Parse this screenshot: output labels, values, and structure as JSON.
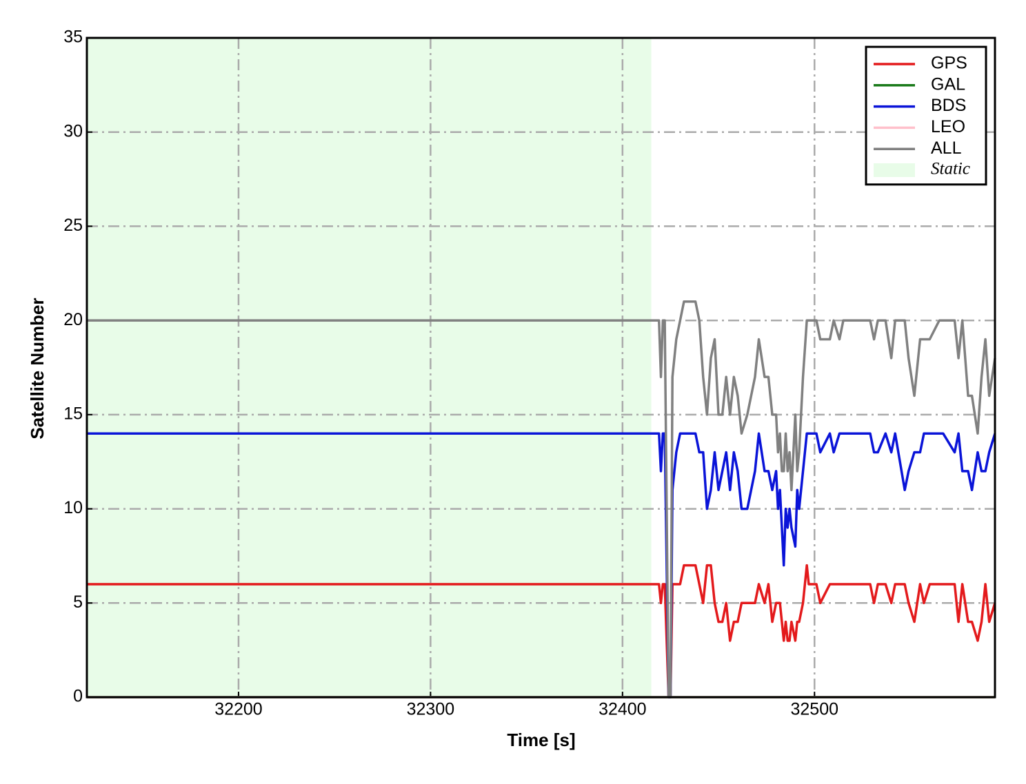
{
  "chart_data": {
    "type": "line",
    "xlabel": "Time [s]",
    "ylabel": "Satellite Number",
    "xlim": [
      32121,
      32594
    ],
    "xticks": [
      32200,
      32300,
      32400,
      32500
    ],
    "ylim": [
      0,
      35
    ],
    "yticks": [
      0,
      5,
      10,
      15,
      20,
      25,
      30,
      35
    ],
    "grid": true,
    "legend": "upper right",
    "spans": [
      {
        "name": "Static",
        "color": "#e8fce8",
        "x": [
          32121,
          32415
        ]
      }
    ],
    "x": [
      32121,
      32419,
      32420,
      32421,
      32422,
      32424,
      32425,
      32426,
      32428,
      32430,
      32432,
      32438,
      32440,
      32442,
      32444,
      32446,
      32448,
      32450,
      32452,
      32454,
      32456,
      32458,
      32460,
      32462,
      32465,
      32469,
      32471,
      32474,
      32476,
      32478,
      32480,
      32481,
      32482,
      32483,
      32484,
      32485,
      32486,
      32487,
      32488,
      32490,
      32491,
      32492,
      32494,
      32496,
      32497,
      32501,
      32503,
      32508,
      32510,
      32513,
      32515,
      32529,
      32531,
      32533,
      32537,
      32540,
      32542,
      32547,
      32549,
      32552,
      32555,
      32557,
      32560,
      32565,
      32567,
      32573,
      32575,
      32577,
      32580,
      32582,
      32585,
      32587,
      32589,
      32591,
      32594
    ],
    "series": [
      {
        "name": "GPS",
        "color": "#e31a1c",
        "values": [
          6,
          6,
          5,
          6,
          6,
          0,
          0,
          6,
          6,
          6,
          7,
          7,
          6,
          5,
          7,
          7,
          5,
          4,
          4,
          5,
          3,
          4,
          4,
          5,
          5,
          5,
          6,
          5,
          6,
          4,
          5,
          5,
          5,
          4,
          3,
          4,
          3,
          3,
          4,
          3,
          4,
          4,
          5,
          7,
          6,
          6,
          5,
          6,
          6,
          6,
          6,
          6,
          5,
          6,
          6,
          5,
          6,
          6,
          5,
          4,
          6,
          5,
          6,
          6,
          6,
          6,
          4,
          6,
          4,
          4,
          3,
          4,
          6,
          4,
          5
        ]
      },
      {
        "name": "GAL",
        "color": "#1a7a1a",
        "values": [
          0,
          0,
          0,
          0,
          0,
          0,
          0,
          0,
          0,
          0,
          0,
          0,
          0,
          0,
          0,
          0,
          0,
          0,
          0,
          0,
          0,
          0,
          0,
          0,
          0,
          0,
          0,
          0,
          0,
          0,
          0,
          0,
          0,
          0,
          0,
          0,
          0,
          0,
          0,
          0,
          0,
          0,
          0,
          0,
          0,
          0,
          0,
          0,
          0,
          0,
          0,
          0,
          0,
          0,
          0,
          0,
          0,
          0,
          0,
          0,
          0,
          0,
          0,
          0,
          0,
          0,
          0,
          0,
          0,
          0,
          0,
          0,
          0,
          0,
          0
        ]
      },
      {
        "name": "BDS",
        "color": "#0a14d8",
        "values": [
          14,
          14,
          12,
          14,
          14,
          0,
          0,
          11,
          13,
          14,
          14,
          14,
          13,
          13,
          10,
          11,
          13,
          11,
          12,
          13,
          11,
          13,
          12,
          10,
          10,
          12,
          14,
          12,
          12,
          11,
          12,
          10,
          11,
          9,
          7,
          10,
          9,
          10,
          9,
          8,
          11,
          10,
          12,
          14,
          14,
          14,
          13,
          14,
          13,
          14,
          14,
          14,
          13,
          13,
          14,
          13,
          14,
          11,
          12,
          13,
          13,
          14,
          14,
          14,
          14,
          13,
          14,
          12,
          12,
          11,
          13,
          12,
          12,
          13,
          14
        ]
      },
      {
        "name": "LEO",
        "color": "#ffc0cb",
        "values": [
          0,
          0,
          0,
          0,
          0,
          0,
          0,
          0,
          0,
          0,
          0,
          0,
          0,
          0,
          0,
          0,
          0,
          0,
          0,
          0,
          0,
          0,
          0,
          0,
          0,
          0,
          0,
          0,
          0,
          0,
          0,
          0,
          0,
          0,
          0,
          0,
          0,
          0,
          0,
          0,
          0,
          0,
          0,
          0,
          0,
          0,
          0,
          0,
          0,
          0,
          0,
          0,
          0,
          0,
          0,
          0,
          0,
          0,
          0,
          0,
          0,
          0,
          0,
          0,
          0,
          0,
          0,
          0,
          0,
          0,
          0,
          0,
          0,
          0,
          0
        ]
      },
      {
        "name": "ALL",
        "color": "#808080",
        "values": [
          20,
          20,
          17,
          20,
          20,
          0,
          0,
          17,
          19,
          20,
          21,
          21,
          20,
          17,
          15,
          18,
          19,
          15,
          15,
          17,
          15,
          17,
          16,
          14,
          15,
          17,
          19,
          17,
          17,
          15,
          15,
          13,
          14,
          12,
          12,
          14,
          12,
          13,
          11,
          15,
          12,
          13,
          17,
          20,
          20,
          20,
          19,
          19,
          20,
          19,
          20,
          20,
          19,
          20,
          20,
          18,
          20,
          20,
          18,
          16,
          19,
          19,
          19,
          20,
          20,
          20,
          18,
          20,
          16,
          16,
          14,
          17,
          19,
          16,
          18
        ]
      }
    ]
  }
}
